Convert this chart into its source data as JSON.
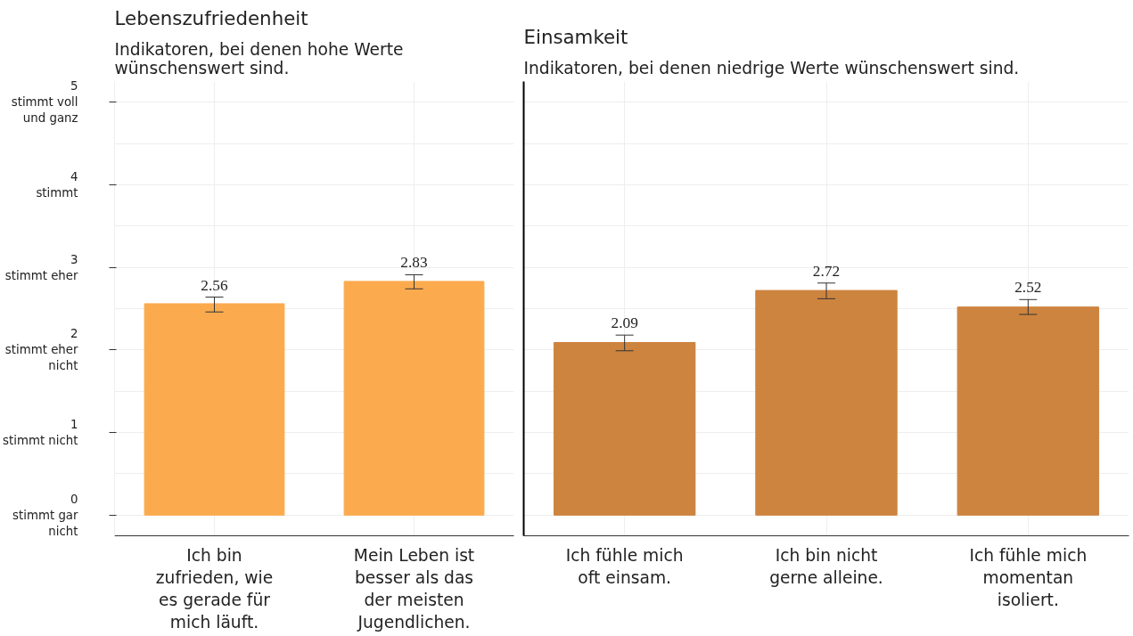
{
  "chart_data": [
    {
      "type": "bar",
      "title": "Lebenszufriedenheit",
      "subtitle": "Indikatoren, bei denen hohe Werte wünschenswert sind.",
      "categories": [
        "Ich bin zufrieden, wie es gerade für mich läuft.",
        "Mein Leben ist besser als das der meisten Jugendlichen."
      ],
      "values": [
        2.56,
        2.83
      ],
      "color": "#fbab4e",
      "errors": [
        [
          2.46,
          2.64
        ],
        [
          2.74,
          2.91
        ]
      ],
      "data_labels": true,
      "ylim": [
        -0.25,
        5.25
      ],
      "yticks": [
        {
          "value": 0,
          "label": "0\nstimmt gar\nnicht"
        },
        {
          "value": 1,
          "label": "1\nstimmt nicht"
        },
        {
          "value": 2,
          "label": "2\nstimmt eher\nnicht"
        },
        {
          "value": 3,
          "label": "3\nstimmt eher"
        },
        {
          "value": 4,
          "label": "4\nstimmt"
        },
        {
          "value": 5,
          "label": "5\nstimmt voll\nund ganz"
        }
      ],
      "grid": true
    },
    {
      "type": "bar",
      "title": "Einsamkeit",
      "subtitle": "Indikatoren, bei denen niedrige Werte wünschenswert sind.",
      "categories": [
        "Ich fühle mich oft einsam.",
        "Ich bin nicht gerne alleine.",
        "Ich fühle mich momentan isoliert."
      ],
      "values": [
        2.09,
        2.72,
        2.52
      ],
      "color": "#cd843f",
      "errors": [
        [
          1.99,
          2.18
        ],
        [
          2.62,
          2.81
        ],
        [
          2.43,
          2.61
        ]
      ],
      "data_labels": true,
      "ylim": [
        -0.25,
        5.25
      ],
      "yticks": [
        0,
        1,
        2,
        3,
        4,
        5
      ],
      "tick_labels": "x",
      "grid": true
    }
  ]
}
